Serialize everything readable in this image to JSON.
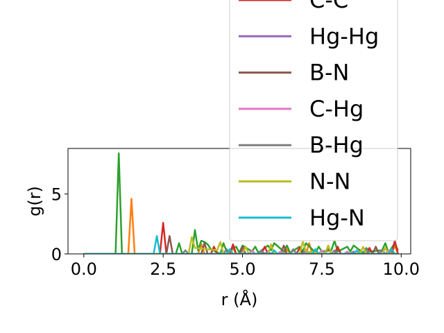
{
  "chart_data": {
    "type": "line",
    "xlabel": "r (Å)",
    "ylabel": "g(r)",
    "xlim": [
      -0.5,
      10.3
    ],
    "ylim": [
      0,
      8.8
    ],
    "x_ticks": [
      {
        "value": 0.0,
        "label": "0.0"
      },
      {
        "value": 2.5,
        "label": "2.5"
      },
      {
        "value": 5.0,
        "label": "5.0"
      },
      {
        "value": 7.5,
        "label": "7.5"
      },
      {
        "value": 10.0,
        "label": "10.0"
      }
    ],
    "y_ticks": [
      {
        "value": 0,
        "label": "0"
      },
      {
        "value": 5,
        "label": "5"
      }
    ],
    "legend_position": "upper right, extending above the plot",
    "series": [
      {
        "name": "",
        "color": "#1f77b4",
        "x": [
          0,
          9.9
        ],
        "y": [
          0,
          0
        ]
      },
      {
        "name": "",
        "color": "#ff7f0e",
        "x": [
          0,
          1.4,
          1.5,
          1.6,
          3.6,
          3.7,
          3.8,
          4.6,
          4.7,
          4.8,
          6.3,
          6.4,
          6.5,
          7.0,
          7.1,
          7.2,
          8.6,
          8.7,
          8.8,
          9.7,
          9.8,
          9.9
        ],
        "y": [
          0,
          0,
          4.6,
          0,
          0,
          0.8,
          0,
          0,
          0.5,
          0,
          0,
          0.4,
          0,
          0,
          0.9,
          0,
          0,
          0.3,
          0,
          0,
          0.7,
          0
        ]
      },
      {
        "name": "",
        "color": "#2ca02c",
        "x": [
          0,
          1.0,
          1.1,
          1.2,
          2.9,
          3.0,
          3.1,
          3.4,
          3.5,
          3.6,
          3.7,
          3.8,
          3.9,
          4.0,
          4.3,
          4.4,
          4.5,
          4.8,
          4.9,
          5.0,
          5.3,
          5.4,
          5.5,
          5.8,
          5.9,
          6.0,
          6.3,
          6.4,
          6.5,
          6.8,
          6.9,
          7.0,
          7.3,
          7.4,
          7.5,
          7.8,
          7.9,
          8.0,
          8.3,
          8.4,
          8.5,
          8.8,
          8.9,
          9.0,
          9.4,
          9.5,
          9.6,
          9.8,
          9.9
        ],
        "y": [
          0,
          0,
          8.4,
          0,
          0,
          0.9,
          0,
          0,
          2.0,
          0.3,
          1.1,
          1.0,
          0.8,
          0.4,
          0,
          0.9,
          0.2,
          0.6,
          0.1,
          0.7,
          0.2,
          0.6,
          0.1,
          0.7,
          0.3,
          0.9,
          0.2,
          0.7,
          0.1,
          0.6,
          0.2,
          0.9,
          0.1,
          0.6,
          0.2,
          0.3,
          1.1,
          0.2,
          0.6,
          0.2,
          0.7,
          0.1,
          0.5,
          0.2,
          0.3,
          0.9,
          0.1,
          0.9,
          0.3
        ]
      },
      {
        "name": "C-C",
        "color": "#d62728",
        "x": [
          0,
          2.4,
          2.5,
          2.6,
          4.0,
          4.1,
          4.2,
          4.6,
          4.7,
          4.8,
          5.6,
          5.7,
          5.8,
          6.7,
          6.8,
          6.9,
          7.9,
          8.0,
          8.1,
          8.9,
          9.0,
          9.1,
          9.7,
          9.8,
          9.9
        ],
        "y": [
          0,
          0,
          2.6,
          0,
          0,
          0.6,
          0,
          0,
          0.8,
          0,
          0,
          0.6,
          0,
          0,
          0.5,
          0,
          0,
          0.6,
          0,
          0,
          0.5,
          0,
          0,
          1.1,
          0
        ]
      },
      {
        "name": "Hg-Hg",
        "color": "#9467bd",
        "x": [
          0,
          4.9,
          5.0,
          5.1,
          5.7,
          5.8,
          5.9,
          6.9,
          7.0,
          7.1,
          8.4,
          8.5,
          8.6,
          9.3,
          9.4,
          9.5,
          9.9
        ],
        "y": [
          0,
          0,
          0.3,
          0,
          0,
          0.2,
          0,
          0,
          0.3,
          0,
          0,
          0.2,
          0,
          0,
          0.3,
          0,
          0
        ]
      },
      {
        "name": "B-N",
        "color": "#8c564b",
        "x": [
          0,
          2.6,
          2.7,
          2.8,
          3.7,
          3.8,
          3.9,
          4.9,
          5.0,
          5.1,
          6.2,
          6.3,
          6.4,
          7.6,
          7.7,
          7.8,
          9.1,
          9.2,
          9.3,
          9.9
        ],
        "y": [
          0,
          0,
          1.5,
          0,
          0,
          0.9,
          0,
          0,
          0.6,
          0,
          0,
          0.7,
          0,
          0,
          0.5,
          0,
          0,
          0.6,
          0,
          0
        ]
      },
      {
        "name": "C-Hg",
        "color": "#e377c2",
        "x": [
          0,
          5.2,
          5.3,
          5.4,
          6.1,
          6.2,
          6.3,
          7.4,
          7.5,
          7.6,
          8.2,
          8.3,
          8.4,
          9.5,
          9.6,
          9.7,
          9.9
        ],
        "y": [
          0,
          0,
          0.3,
          0,
          0,
          0.2,
          0,
          0,
          0.3,
          0,
          0,
          0.2,
          0,
          0,
          0.3,
          0,
          0
        ]
      },
      {
        "name": "B-Hg",
        "color": "#7f7f7f",
        "x": [
          0,
          3.1,
          3.2,
          3.3,
          4.4,
          4.5,
          4.6,
          5.5,
          5.6,
          5.7,
          6.5,
          6.6,
          6.7,
          7.8,
          7.9,
          8.0,
          8.8,
          8.9,
          9.0,
          9.9
        ],
        "y": [
          0,
          0,
          0.3,
          0,
          0,
          0.4,
          0,
          0,
          0.3,
          0,
          0,
          0.4,
          0,
          0,
          0.3,
          0,
          0,
          0.4,
          0,
          0
        ]
      },
      {
        "name": "N-N",
        "color": "#bcbd22",
        "x": [
          0,
          3.3,
          3.4,
          3.5,
          4.2,
          4.3,
          4.4,
          5.0,
          5.1,
          5.2,
          5.8,
          5.9,
          6.0,
          6.8,
          6.9,
          7.0,
          7.6,
          7.7,
          7.8,
          8.7,
          8.8,
          8.9,
          9.4,
          9.5,
          9.6,
          9.9
        ],
        "y": [
          0,
          0,
          1.4,
          0.5,
          0.3,
          1.0,
          0,
          0,
          0.6,
          0,
          0,
          0.8,
          0,
          0,
          1.0,
          0.2,
          0,
          0.7,
          0,
          0,
          0.6,
          0,
          0,
          0.5,
          0,
          0
        ]
      },
      {
        "name": "Hg-N",
        "color": "#17becf",
        "x": [
          0,
          2.2,
          2.3,
          2.4,
          4.5,
          4.6,
          4.7,
          5.9,
          6.0,
          6.1,
          7.2,
          7.3,
          7.4,
          8.5,
          8.6,
          8.7,
          9.6,
          9.7,
          9.8,
          9.9
        ],
        "y": [
          0,
          0,
          1.5,
          0,
          0,
          0.4,
          0,
          0,
          0.3,
          0,
          0,
          0.4,
          0,
          0,
          0.3,
          0,
          0,
          0.4,
          0,
          0
        ]
      }
    ]
  }
}
